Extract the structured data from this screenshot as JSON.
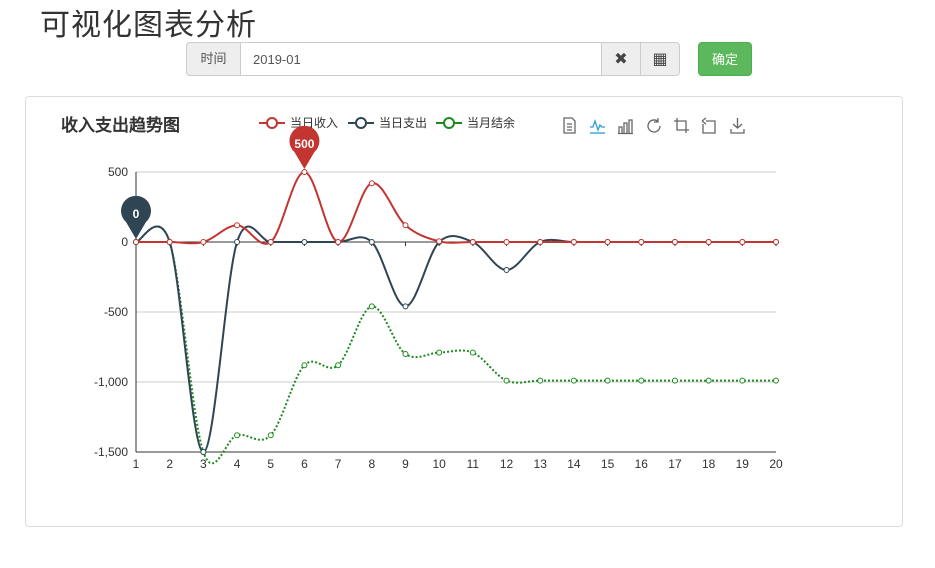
{
  "page": {
    "title": "可视化图表分析"
  },
  "filter": {
    "label": "时间",
    "value": "2019-01",
    "clear_glyph": "✖",
    "grid_glyph": "▦",
    "confirm_label": "确定"
  },
  "colors": {
    "income": "#c23531",
    "expense": "#2f4554",
    "balance": "#1e8a1e",
    "confirm": "#5cb85c"
  },
  "toolbox": [
    "data-view-icon",
    "line-chart-icon",
    "bar-chart-icon",
    "restore-icon",
    "crop-icon",
    "undo-icon",
    "download-icon"
  ],
  "chart_data": {
    "type": "line",
    "title": "收入支出趋势图",
    "legend_position": "top-center",
    "smooth": true,
    "grid": "horizontal",
    "ylim": [
      -1500,
      500
    ],
    "y_ticks": [
      500,
      0,
      -500,
      -1000,
      -1500
    ],
    "y_tick_labels": [
      "500",
      "0",
      "-500",
      "-1,000",
      "-1,500"
    ],
    "categories": [
      "1",
      "2",
      "3",
      "4",
      "5",
      "6",
      "7",
      "8",
      "9",
      "10",
      "11",
      "12",
      "13",
      "14",
      "15",
      "16",
      "17",
      "18",
      "19",
      "20"
    ],
    "series": [
      {
        "name": "当日收入",
        "line": "solid",
        "values": [
          0,
          0,
          0,
          120,
          0,
          500,
          0,
          420,
          120,
          5,
          0,
          0,
          0,
          0,
          0,
          0,
          0,
          0,
          0,
          0
        ]
      },
      {
        "name": "当日支出",
        "line": "solid",
        "values": [
          0,
          0,
          -1500,
          0,
          0,
          0,
          0,
          0,
          -460,
          0,
          0,
          -200,
          0,
          0,
          0,
          0,
          0,
          0,
          0,
          0
        ]
      },
      {
        "name": "当月结余",
        "line": "dotted",
        "values": [
          0,
          0,
          -1500,
          -1380,
          -1380,
          -880,
          -880,
          -460,
          -800,
          -790,
          -790,
          -990,
          -990,
          -990,
          -990,
          -990,
          -990,
          -990,
          -990,
          -990
        ]
      }
    ],
    "markers": [
      {
        "series": 0,
        "index": 5,
        "label": "500"
      },
      {
        "series": 1,
        "index": 0,
        "label": "0"
      }
    ]
  }
}
